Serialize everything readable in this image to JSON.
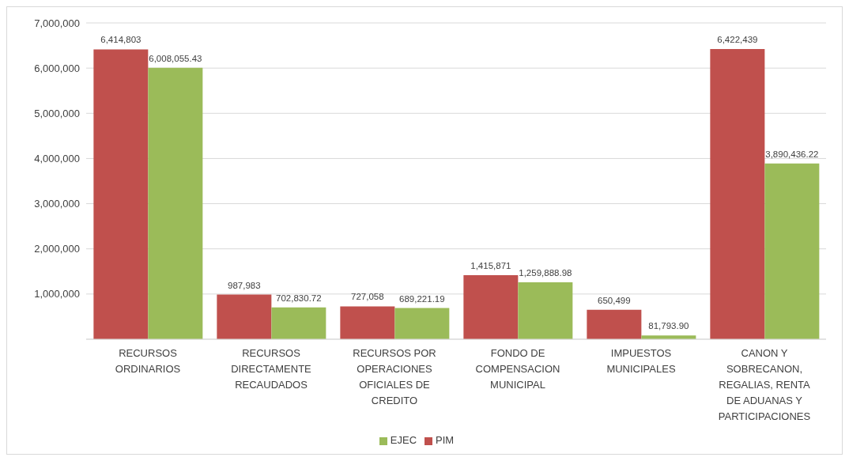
{
  "chart_data": {
    "type": "bar",
    "categories": [
      "RECURSOS ORDINARIOS",
      "RECURSOS DIRECTAMENTE RECAUDADOS",
      "RECURSOS POR OPERACIONES OFICIALES DE CREDITO",
      "FONDO DE COMPENSACION MUNICIPAL",
      "IMPUESTOS MUNICIPALES",
      "CANON Y SOBRECANON, REGALIAS, RENTA DE ADUANAS Y PARTICIPACIONES"
    ],
    "series": [
      {
        "name": "PIM",
        "color": "#c0504d",
        "values": [
          6414803,
          987983,
          727058,
          1415871,
          650499,
          6422439
        ],
        "value_labels": [
          "6,414,803",
          "987,983",
          "727,058",
          "1,415,871",
          "650,499",
          "6,422,439"
        ]
      },
      {
        "name": "EJEC",
        "color": "#9bbb59",
        "values": [
          6008055.43,
          702830.72,
          689221.19,
          1259888.98,
          81793.9,
          3890436.22
        ],
        "value_labels": [
          "6,008,055.43",
          "702,830.72",
          "689,221.19",
          "1,259,888.98",
          "81,793.90",
          "3,890,436.22"
        ]
      }
    ],
    "ylim": [
      0,
      7000000
    ],
    "yticks": [
      {
        "value": 0,
        "label": null
      },
      {
        "value": 1000000,
        "label": "1,000,000"
      },
      {
        "value": 2000000,
        "label": "2,000,000"
      },
      {
        "value": 3000000,
        "label": "3,000,000"
      },
      {
        "value": 4000000,
        "label": "4,000,000"
      },
      {
        "value": 5000000,
        "label": "5,000,000"
      },
      {
        "value": 6000000,
        "label": "6,000,000"
      },
      {
        "value": 7000000,
        "label": "7,000,000"
      }
    ],
    "grid": "y",
    "legend": "bottom"
  }
}
